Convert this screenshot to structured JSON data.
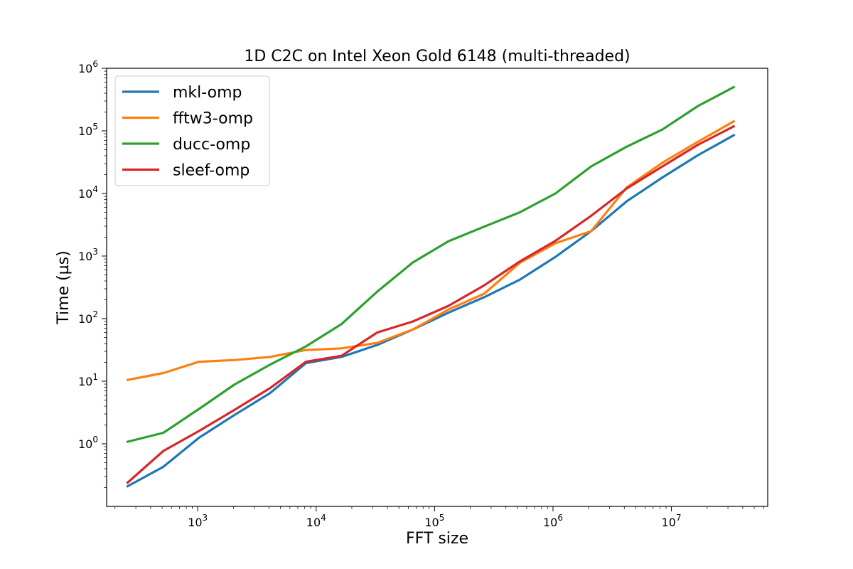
{
  "chart_data": {
    "type": "line",
    "title": "1D C2C on Intel Xeon Gold 6148 (multi-threaded)",
    "xlabel": "FFT size",
    "ylabel": "Time (µs)",
    "xscale": "log",
    "yscale": "log",
    "xlim": [
      170,
      65000000
    ],
    "ylim": [
      0.1,
      1000000
    ],
    "grid": false,
    "legend_position": "upper-left",
    "xticks": [
      {
        "value": 1000,
        "base": "10",
        "exp": "3"
      },
      {
        "value": 10000,
        "base": "10",
        "exp": "4"
      },
      {
        "value": 100000,
        "base": "10",
        "exp": "5"
      },
      {
        "value": 1000000,
        "base": "10",
        "exp": "6"
      },
      {
        "value": 10000000,
        "base": "10",
        "exp": "7"
      }
    ],
    "yticks": [
      {
        "value": 1,
        "base": "10",
        "exp": "0"
      },
      {
        "value": 10,
        "base": "10",
        "exp": "1"
      },
      {
        "value": 100,
        "base": "10",
        "exp": "2"
      },
      {
        "value": 1000,
        "base": "10",
        "exp": "3"
      },
      {
        "value": 10000,
        "base": "10",
        "exp": "4"
      },
      {
        "value": 100000,
        "base": "10",
        "exp": "5"
      },
      {
        "value": 1000000,
        "base": "10",
        "exp": "6"
      }
    ],
    "x": [
      256,
      512,
      1024,
      2048,
      4096,
      8192,
      16384,
      32768,
      65536,
      131072,
      262144,
      524288,
      1048576,
      2097152,
      4194304,
      8388608,
      16777216,
      33554432
    ],
    "series": [
      {
        "name": "mkl-omp",
        "color": "#1f77b4",
        "values": [
          0.21,
          0.43,
          1.25,
          2.9,
          6.5,
          19.5,
          24.5,
          38,
          67,
          125,
          220,
          420,
          970,
          2500,
          7500,
          18000,
          41000,
          85000
        ]
      },
      {
        "name": "fftw3-omp",
        "color": "#ff7f0e",
        "values": [
          10.5,
          13.5,
          20.5,
          21.8,
          24.5,
          31.5,
          33.5,
          41,
          67,
          140,
          250,
          780,
          1600,
          2500,
          12500,
          31000,
          67000,
          142000
        ]
      },
      {
        "name": "ducc-omp",
        "color": "#2ca02c",
        "values": [
          1.08,
          1.5,
          3.6,
          8.9,
          18.5,
          36,
          82,
          270,
          790,
          1730,
          2950,
          5000,
          10000,
          27000,
          56000,
          105000,
          250000,
          500000
        ]
      },
      {
        "name": "sleef-omp",
        "color": "#d62728",
        "values": [
          0.24,
          0.77,
          1.6,
          3.5,
          7.8,
          20.5,
          25.5,
          60,
          90,
          160,
          340,
          820,
          1750,
          4400,
          12000,
          27000,
          60000,
          118000
        ]
      }
    ]
  }
}
